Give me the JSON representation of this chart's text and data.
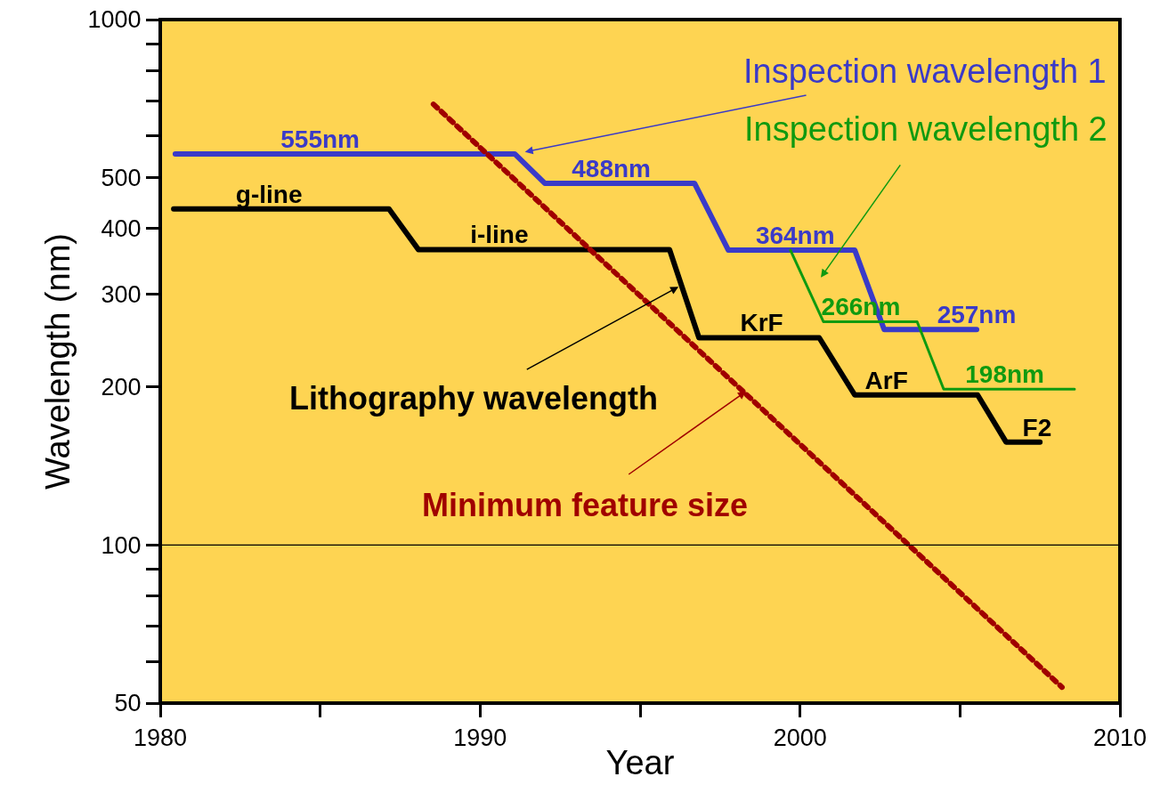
{
  "chart_data": {
    "type": "line",
    "xlabel": "Year",
    "ylabel": "Wavelength (nm)",
    "log": "y",
    "xlim": [
      1980,
      2010
    ],
    "xticks": [
      1980,
      {
        "value": 1985,
        "label": null
      },
      1990,
      {
        "value": 1995,
        "label": null
      },
      2000,
      {
        "value": 2005,
        "label": null
      },
      2010
    ],
    "ylim": [
      50,
      1000
    ],
    "yticks": [
      50,
      {
        "value": 60,
        "label": null
      },
      {
        "value": 70,
        "label": null
      },
      {
        "value": 80,
        "label": null
      },
      {
        "value": 90,
        "label": null
      },
      100,
      200,
      300,
      400,
      500,
      {
        "value": 600,
        "label": null
      },
      {
        "value": 700,
        "label": null
      },
      {
        "value": 800,
        "label": null
      },
      {
        "value": 900,
        "label": null
      },
      1000
    ],
    "grid": false,
    "legend": false,
    "marker": "none",
    "ref_lines": [
      {
        "axis": "y",
        "value": 100,
        "color": "#000000"
      }
    ],
    "series": [
      {
        "name": "Inspection wavelength 1",
        "color": "#3a3ac8",
        "line_style": "solid",
        "x": [
          1980.47,
          1985.0,
          1991.08,
          1992.02,
          1994.1,
          1996.7,
          1997.76,
          1999.85,
          2001.71,
          2002.63,
          2005.52
        ],
        "values": [
          555,
          555,
          555,
          488,
          488,
          488,
          364,
          364,
          364,
          257,
          257
        ],
        "value_labels": [
          null,
          "555nm",
          null,
          null,
          "488nm",
          null,
          null,
          "364nm",
          null,
          null,
          "257nm"
        ]
      },
      {
        "name": "Inspection wavelength 2",
        "color": "#109a10",
        "line_style": "solid",
        "x": [
          1999.7,
          2000.73,
          2001.9,
          2003.66,
          2004.49,
          2006.4,
          2008.58
        ],
        "values": [
          364,
          266,
          266,
          266,
          198,
          198,
          198
        ],
        "value_labels": [
          null,
          null,
          "266nm",
          null,
          null,
          "198nm",
          null
        ]
      },
      {
        "name": "Lithography wavelength",
        "color": "#000000",
        "line_style": "solid",
        "x": [
          1980.42,
          1983.4,
          1987.15,
          1988.07,
          1990.6,
          1995.92,
          1996.84,
          1998.8,
          2000.6,
          2001.71,
          2002.7,
          2005.55,
          2006.44,
          2007.41,
          2007.5
        ],
        "values": [
          436,
          436,
          436,
          365,
          365,
          365,
          248,
          248,
          248,
          193,
          193,
          193,
          157,
          157,
          157
        ],
        "value_labels": [
          null,
          "g-line",
          null,
          null,
          "i-line",
          null,
          null,
          "KrF",
          null,
          null,
          "ArF",
          null,
          null,
          "F2",
          null
        ]
      },
      {
        "name": "Minimum feature size",
        "color": "#a00000",
        "line_style": "dotted",
        "x": [
          1988.54,
          2008.19
        ],
        "values": [
          690,
          53.6
        ]
      }
    ]
  }
}
